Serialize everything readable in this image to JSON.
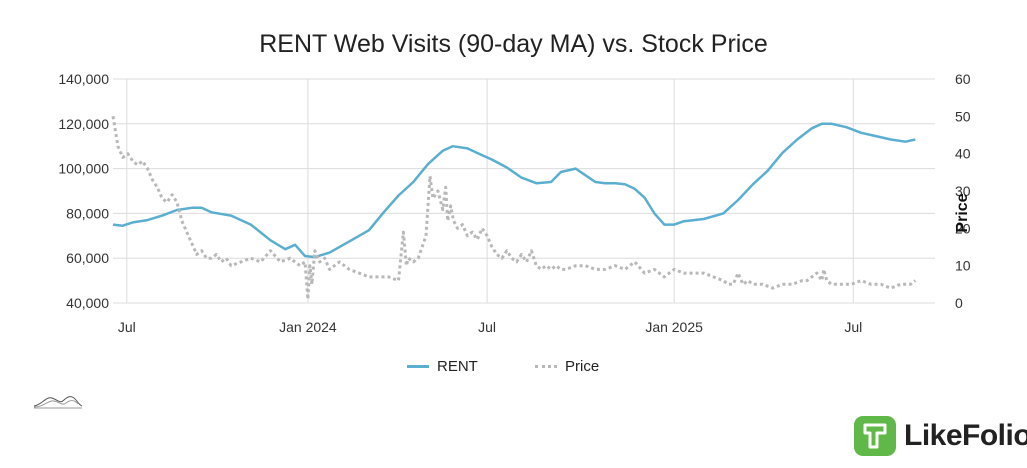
{
  "chart_data": {
    "type": "line",
    "title": "RENT Web Visits (90-day MA) vs. Stock Price",
    "ylabel": "",
    "y2label": "Price",
    "ylim": [
      40000,
      140000
    ],
    "y2lim": [
      0,
      60
    ],
    "yticks": [
      "40,000",
      "60,000",
      "80,000",
      "100,000",
      "120,000",
      "140,000"
    ],
    "y2ticks": [
      "0",
      "10",
      "20",
      "30",
      "40",
      "50",
      "60"
    ],
    "xlim": [
      0,
      835
    ],
    "xticks": [
      {
        "label": "Jul",
        "x": 14
      },
      {
        "label": "Jan 2024",
        "x": 198
      },
      {
        "label": "Jul",
        "x": 380
      },
      {
        "label": "Jan 2025",
        "x": 570
      },
      {
        "label": "Jul",
        "x": 752
      }
    ],
    "series": [
      {
        "name": "RENT",
        "axis": "left",
        "color": "#5aaed0",
        "x": [
          0,
          10,
          20,
          35,
          50,
          65,
          80,
          90,
          100,
          120,
          140,
          160,
          175,
          185,
          195,
          205,
          220,
          240,
          260,
          275,
          290,
          305,
          320,
          335,
          345,
          360,
          375,
          385,
          400,
          415,
          430,
          445,
          455,
          470,
          480,
          490,
          500,
          510,
          520,
          530,
          540,
          550,
          560,
          570,
          580,
          600,
          620,
          635,
          650,
          665,
          680,
          695,
          710,
          720,
          730,
          745,
          760,
          775,
          790,
          805,
          815
        ],
        "values": [
          75000,
          74500,
          76000,
          77000,
          79000,
          81500,
          82500,
          82500,
          80500,
          79000,
          75000,
          68000,
          64000,
          66000,
          61000,
          60500,
          62500,
          67500,
          72500,
          80500,
          88000,
          94000,
          102000,
          108000,
          110000,
          109000,
          106000,
          104000,
          100500,
          96000,
          93500,
          94000,
          98500,
          100000,
          97000,
          94000,
          93500,
          93500,
          93000,
          91000,
          87000,
          80000,
          75000,
          75000,
          76500,
          77500,
          80000,
          86000,
          93000,
          99000,
          107000,
          113000,
          118000,
          120000,
          120000,
          118500,
          116000,
          114500,
          113000,
          112000,
          113000
        ]
      },
      {
        "name": "Price",
        "axis": "right",
        "color": "#b8b8b8",
        "x": [
          0,
          5,
          10,
          15,
          20,
          25,
          30,
          35,
          40,
          45,
          50,
          55,
          60,
          65,
          70,
          75,
          80,
          85,
          90,
          95,
          100,
          105,
          110,
          115,
          120,
          130,
          140,
          150,
          160,
          170,
          180,
          190,
          195,
          198,
          200,
          202,
          205,
          210,
          215,
          220,
          230,
          240,
          250,
          260,
          270,
          280,
          290,
          295,
          298,
          300,
          305,
          310,
          318,
          322,
          325,
          330,
          335,
          338,
          340,
          343,
          346,
          350,
          355,
          360,
          365,
          370,
          375,
          380,
          385,
          390,
          395,
          400,
          405,
          410,
          415,
          420,
          425,
          430,
          435,
          440,
          445,
          450,
          455,
          460,
          470,
          480,
          490,
          500,
          510,
          520,
          530,
          540,
          550,
          560,
          570,
          580,
          590,
          600,
          610,
          620,
          625,
          630,
          635,
          640,
          645,
          650,
          660,
          670,
          680,
          690,
          700,
          705,
          710,
          715,
          720,
          722,
          725,
          730,
          740,
          750,
          760,
          770,
          780,
          790,
          800,
          810,
          815
        ],
        "values": [
          50,
          42,
          39,
          40,
          38,
          37,
          38,
          36,
          33,
          31,
          28,
          27,
          29,
          27,
          22,
          19,
          16,
          13,
          14,
          12,
          12,
          13,
          11,
          12,
          10,
          11,
          12,
          11,
          14,
          11,
          12,
          10,
          11,
          1,
          10,
          5,
          14,
          11,
          12,
          9,
          11,
          9,
          8,
          7,
          7,
          7,
          6,
          19,
          10,
          12,
          11,
          12,
          18,
          34,
          28,
          30,
          25,
          31,
          22,
          26,
          22,
          20,
          21,
          18,
          19,
          17,
          20,
          18,
          15,
          13,
          12,
          14,
          12,
          11,
          13,
          11,
          14,
          10,
          9,
          10,
          9,
          10,
          9,
          9,
          10,
          10,
          9,
          9,
          10,
          9,
          11,
          8,
          9,
          7,
          9,
          8,
          8,
          8,
          7,
          6,
          5,
          5,
          8,
          5,
          6,
          5,
          5,
          4,
          5,
          5,
          6,
          6,
          7,
          8,
          6,
          9,
          6,
          5,
          5,
          5,
          6,
          5,
          5,
          4,
          5,
          5,
          6
        ]
      }
    ]
  },
  "legend": {
    "rent": "RENT",
    "price": "Price"
  },
  "brand": {
    "name": "LikeFolio",
    "color": "#5fb847"
  }
}
